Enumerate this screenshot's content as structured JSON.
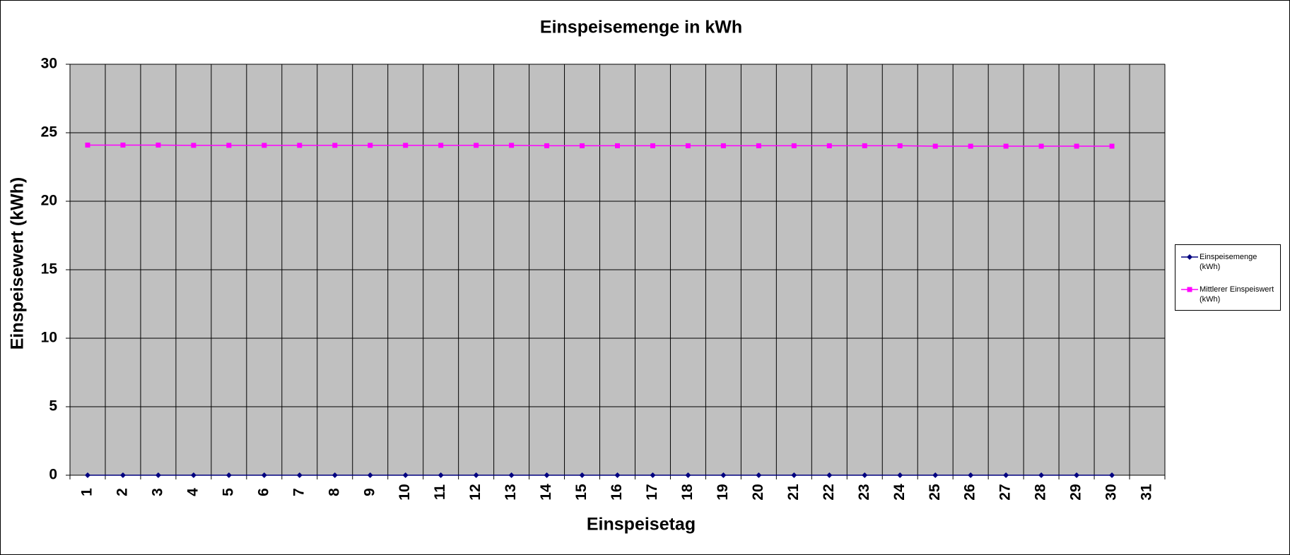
{
  "chart_data": {
    "type": "line",
    "title": "Einspeisemenge in kWh",
    "x_label": "Einspeisetag",
    "y_label": "Einspeisewert  (kWh)",
    "categories": [
      "1",
      "2",
      "3",
      "4",
      "5",
      "6",
      "7",
      "8",
      "9",
      "10",
      "11",
      "12",
      "13",
      "14",
      "15",
      "16",
      "17",
      "18",
      "19",
      "20",
      "21",
      "22",
      "23",
      "24",
      "25",
      "26",
      "27",
      "28",
      "29",
      "30",
      "31"
    ],
    "series": [
      {
        "name": "Einspeisemenge (kWh)",
        "color": "#000080",
        "marker": "diamond",
        "values": [
          0,
          0,
          0,
          0,
          0,
          0,
          0,
          0,
          0,
          0,
          0,
          0,
          0,
          0,
          0,
          0,
          0,
          0,
          0,
          0,
          0,
          0,
          0,
          0,
          0,
          0,
          0,
          0,
          0,
          0,
          null
        ]
      },
      {
        "name": "Mittlerer Einspeiswert (kWh)",
        "color": "#ff00ff",
        "marker": "square",
        "values": [
          24.1,
          24.1,
          24.1,
          24.08,
          24.08,
          24.08,
          24.08,
          24.08,
          24.08,
          24.08,
          24.08,
          24.08,
          24.08,
          24.05,
          24.05,
          24.05,
          24.05,
          24.05,
          24.05,
          24.05,
          24.05,
          24.05,
          24.05,
          24.05,
          24.02,
          24.02,
          24.02,
          24.02,
          24.02,
          24.02,
          null
        ]
      }
    ],
    "ylim": [
      0,
      30
    ],
    "yticks": [
      0,
      5,
      10,
      15,
      20,
      25,
      30
    ],
    "grid": true,
    "legend": "right"
  }
}
